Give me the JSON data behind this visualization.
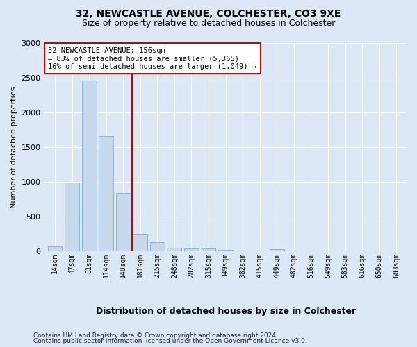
{
  "title1": "32, NEWCASTLE AVENUE, COLCHESTER, CO3 9XE",
  "title2": "Size of property relative to detached houses in Colchester",
  "xlabel": "Distribution of detached houses by size in Colchester",
  "ylabel": "Number of detached properties",
  "categories": [
    "14sqm",
    "47sqm",
    "81sqm",
    "114sqm",
    "148sqm",
    "181sqm",
    "215sqm",
    "248sqm",
    "282sqm",
    "315sqm",
    "349sqm",
    "382sqm",
    "415sqm",
    "449sqm",
    "482sqm",
    "516sqm",
    "549sqm",
    "583sqm",
    "616sqm",
    "650sqm",
    "683sqm"
  ],
  "values": [
    75,
    990,
    2460,
    1660,
    840,
    250,
    130,
    55,
    45,
    40,
    25,
    0,
    0,
    30,
    0,
    0,
    0,
    0,
    0,
    0,
    0
  ],
  "bar_color": "#c6d9ed",
  "bar_edge_color": "#7aafd4",
  "vline_x_index": 4.5,
  "vline_color": "#cc0000",
  "annotation_line1": "32 NEWCASTLE AVENUE: 156sqm",
  "annotation_line2": "← 83% of detached houses are smaller (5,365)",
  "annotation_line3": "16% of semi-detached houses are larger (1,049) →",
  "annotation_box_edge": "#cc0000",
  "ylim": [
    0,
    3000
  ],
  "yticks": [
    0,
    500,
    1000,
    1500,
    2000,
    2500,
    3000
  ],
  "bg_color": "#dce8f5",
  "plot_bg_color": "#dce8f5",
  "grid_color": "#ffffff",
  "footer1": "Contains HM Land Registry data © Crown copyright and database right 2024.",
  "footer2": "Contains public sector information licensed under the Open Government Licence v3.0."
}
